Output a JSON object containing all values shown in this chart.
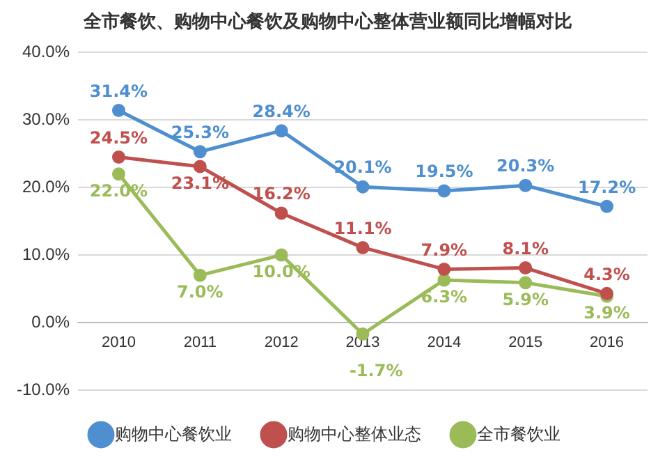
{
  "chart_data": {
    "type": "line",
    "title": "全市餐饮、购物中心餐饮及购物中心整体营业额同比增幅对比",
    "categories": [
      "2010",
      "2011",
      "2012",
      "2013",
      "2014",
      "2015",
      "2016"
    ],
    "series": [
      {
        "name": "购物中心餐饮业",
        "color": "#4f8fcf",
        "values": [
          31.4,
          25.3,
          28.4,
          20.1,
          19.5,
          20.3,
          17.2
        ],
        "value_labels": [
          "31.4%",
          "25.3%",
          "28.4%",
          "20.1%",
          "19.5%",
          "20.3%",
          "17.2%"
        ]
      },
      {
        "name": "购物中心整体业态",
        "color": "#c0504d",
        "values": [
          24.5,
          23.1,
          16.2,
          11.1,
          7.9,
          8.1,
          4.3
        ],
        "value_labels": [
          "24.5%",
          "23.1%",
          "16.2%",
          "11.1%",
          "7.9%",
          "8.1%",
          "4.3%"
        ]
      },
      {
        "name": "全市餐饮业",
        "color": "#9bbb59",
        "values": [
          22.0,
          7.0,
          10.0,
          -1.7,
          6.3,
          5.9,
          3.9
        ],
        "value_labels": [
          "22.0%",
          "7.0%",
          "10.0%",
          "-1.7%",
          "6.3%",
          "5.9%",
          "3.9%"
        ]
      }
    ],
    "ylim": [
      -10,
      40
    ],
    "yticks": [
      {
        "value": -10,
        "label": "-10.0%"
      },
      {
        "value": 0,
        "label": "0.0%"
      },
      {
        "value": 10,
        "label": "10.0%"
      },
      {
        "value": 20,
        "label": "20.0%"
      },
      {
        "value": 30,
        "label": "30.0%"
      },
      {
        "value": 40,
        "label": "40.0%"
      }
    ],
    "grid": "y",
    "legend": "bottom",
    "marker": "circle",
    "line_style": "solid"
  }
}
